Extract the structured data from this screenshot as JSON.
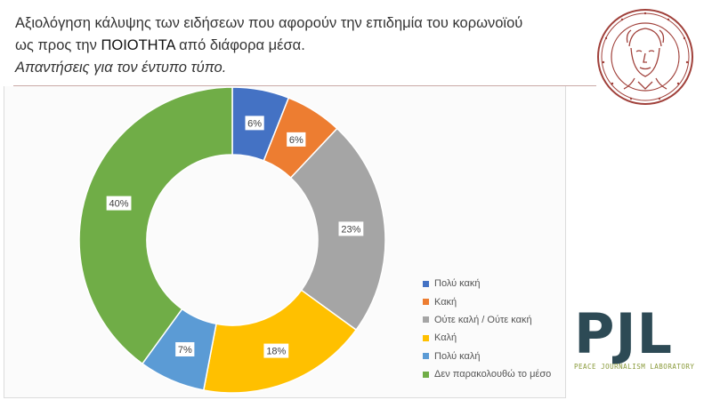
{
  "header": {
    "title_part1": "Αξιολόγηση κάλυψης των ειδήσεων που αφορούν την επιδημία του κορωνοϊού",
    "title_part2": "ως προς την ",
    "title_emph": "ΠΟΙΟΤΗΤΑ",
    "title_part3": " από διάφορα μέσα.",
    "subtitle_part1": "Απαντήσεις για τον ",
    "subtitle_emph": "έντυπο τύπο",
    "subtitle_part2": "."
  },
  "logo": {
    "pjl_letters": "PJL",
    "pjl_sub": "PEACE JOURNALISM LABORATORY"
  },
  "chart_data": {
    "type": "pie",
    "donut": true,
    "legend_position": "right",
    "categories": [
      "Πολύ κακή",
      "Κακή",
      "Ούτε καλή / Ούτε κακή",
      "Καλή",
      "Πολύ καλή",
      "Δεν παρακολουθώ το μέσο"
    ],
    "values": [
      6,
      6,
      23,
      18,
      7,
      40
    ],
    "labels": [
      "6%",
      "6%",
      "23%",
      "18%",
      "7%",
      "40%"
    ],
    "colors": [
      "#4472c4",
      "#ed7d31",
      "#a5a5a5",
      "#ffc000",
      "#5b9bd5",
      "#70ad47"
    ]
  }
}
